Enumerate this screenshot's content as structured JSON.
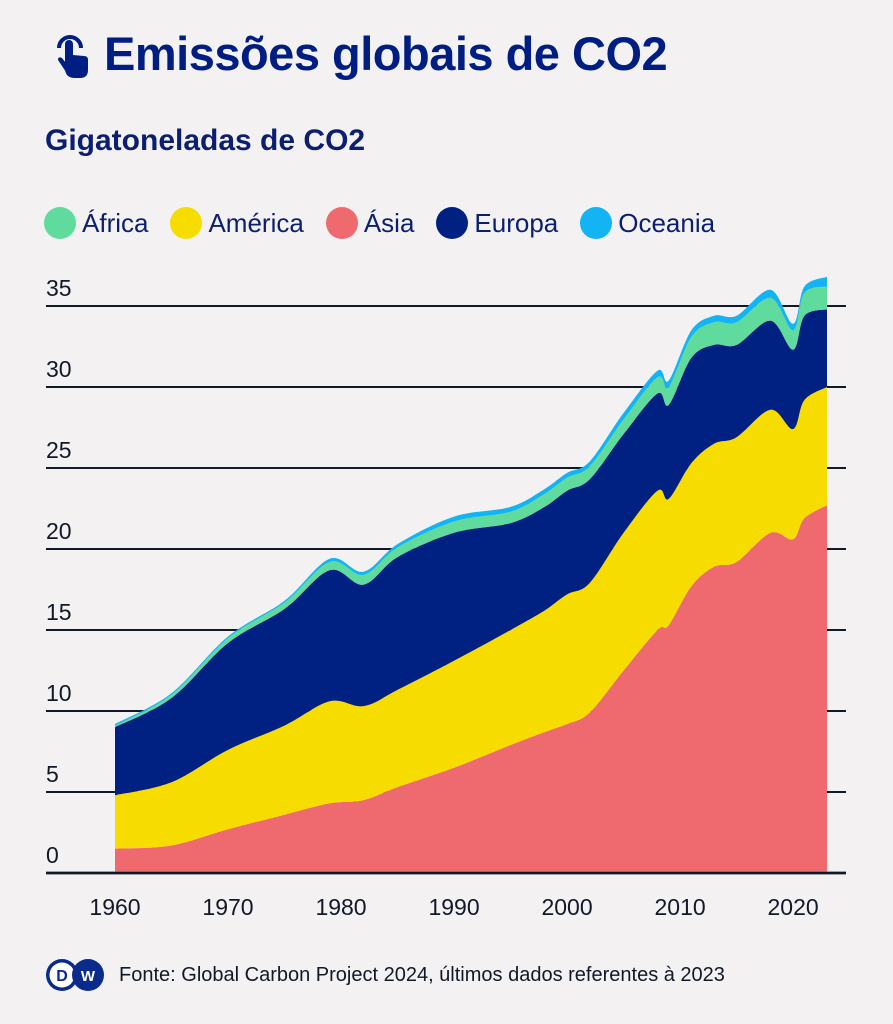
{
  "header": {
    "icon": "tap-hand-icon",
    "title": "Emissões globais de CO2",
    "subtitle": "Gigatoneladas de CO2"
  },
  "legend": [
    {
      "label": "África",
      "color": "#5fdb9e"
    },
    {
      "label": "América",
      "color": "#f7dc00"
    },
    {
      "label": "Ásia",
      "color": "#ee6a6e"
    },
    {
      "label": "Europa",
      "color": "#002082"
    },
    {
      "label": "Oceania",
      "color": "#12b4f4"
    }
  ],
  "footer": {
    "logo": "DW",
    "source": "Fonte: Global Carbon Project 2024, últimos dados referentes à 2023"
  },
  "chart_data": {
    "type": "area",
    "stacked": true,
    "title": "Emissões globais de CO2",
    "subtitle": "Gigatoneladas de CO2",
    "xlabel": "",
    "ylabel": "Gigatoneladas de CO2",
    "xlim": [
      1960,
      2023
    ],
    "ylim": [
      0,
      35
    ],
    "yticks": [
      0,
      5,
      10,
      15,
      20,
      25,
      30,
      35
    ],
    "xticks": [
      1960,
      1970,
      1980,
      1990,
      2000,
      2010,
      2020
    ],
    "grid": "horizontal",
    "legend_position": "top-left",
    "x": [
      1960,
      1965,
      1970,
      1975,
      1979,
      1982,
      1985,
      1990,
      1995,
      1998,
      2000,
      2002,
      2005,
      2008,
      2009,
      2011,
      2013,
      2015,
      2018,
      2020,
      2021,
      2023
    ],
    "stack_order": [
      "Ásia",
      "América",
      "Europa",
      "África",
      "Oceania"
    ],
    "series": [
      {
        "name": "Ásia",
        "color": "#ee6a6e",
        "values": [
          1.5,
          1.7,
          2.7,
          3.6,
          4.3,
          4.5,
          5.3,
          6.5,
          7.9,
          8.7,
          9.2,
          9.9,
          12.5,
          15.0,
          15.3,
          17.7,
          18.9,
          19.2,
          21.0,
          20.6,
          21.9,
          22.7
        ]
      },
      {
        "name": "América",
        "color": "#f7dc00",
        "values": [
          3.3,
          3.9,
          4.9,
          5.5,
          6.3,
          5.8,
          6.0,
          6.6,
          7.1,
          7.5,
          8.0,
          8.0,
          8.5,
          8.6,
          7.8,
          7.6,
          7.6,
          7.7,
          7.6,
          6.8,
          7.3,
          7.3
        ]
      },
      {
        "name": "Europa",
        "color": "#002082",
        "values": [
          4.2,
          5.2,
          6.6,
          7.2,
          8.1,
          7.5,
          8.2,
          7.9,
          6.6,
          6.4,
          6.4,
          6.4,
          6.1,
          6.0,
          5.8,
          6.5,
          6.1,
          5.7,
          5.5,
          4.9,
          5.2,
          4.8
        ]
      },
      {
        "name": "África",
        "color": "#5fdb9e",
        "values": [
          0.1,
          0.2,
          0.3,
          0.4,
          0.5,
          0.6,
          0.6,
          0.7,
          0.7,
          0.8,
          0.8,
          0.8,
          0.9,
          1.0,
          1.1,
          1.3,
          1.4,
          1.4,
          1.4,
          1.2,
          1.4,
          1.4
        ]
      },
      {
        "name": "Oceania",
        "color": "#12b4f4",
        "values": [
          0.1,
          0.1,
          0.1,
          0.1,
          0.2,
          0.2,
          0.2,
          0.3,
          0.3,
          0.3,
          0.3,
          0.3,
          0.4,
          0.4,
          0.4,
          0.4,
          0.4,
          0.4,
          0.5,
          0.4,
          0.4,
          0.6
        ]
      }
    ]
  }
}
